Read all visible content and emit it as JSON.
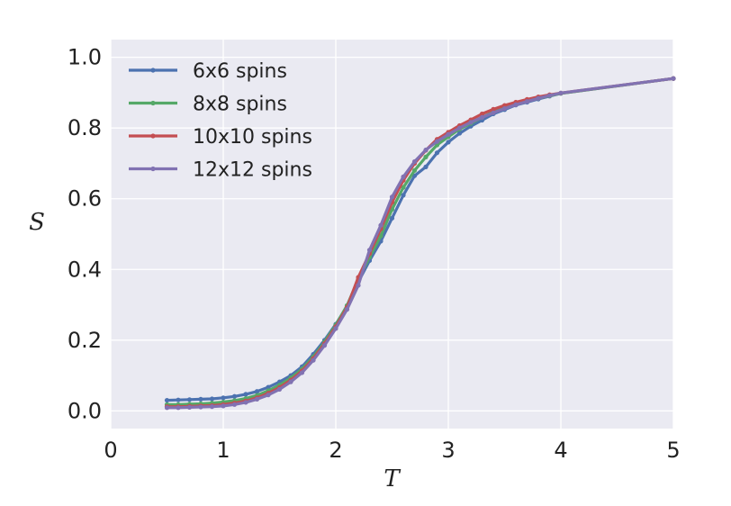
{
  "chart_data": {
    "type": "line",
    "xlabel": "T",
    "ylabel": "S",
    "xlim": [
      0,
      5
    ],
    "ylim": [
      -0.05,
      1.05
    ],
    "xticks": [
      0,
      1,
      2,
      3,
      4,
      5
    ],
    "yticks": [
      0.0,
      0.2,
      0.4,
      0.6,
      0.8,
      1.0
    ],
    "xtick_labels": [
      "0",
      "1",
      "2",
      "3",
      "4",
      "5"
    ],
    "ytick_labels": [
      "0.0",
      "0.2",
      "0.4",
      "0.6",
      "0.8",
      "1.0"
    ],
    "grid": true,
    "legend_position": "top-left",
    "background": "#eaeaf2",
    "x": [
      0.5,
      0.6,
      0.7,
      0.8,
      0.9,
      1.0,
      1.1,
      1.2,
      1.3,
      1.4,
      1.5,
      1.6,
      1.7,
      1.8,
      1.9,
      2.0,
      2.1,
      2.2,
      2.3,
      2.4,
      2.5,
      2.6,
      2.7,
      2.8,
      2.9,
      3.0,
      3.1,
      3.2,
      3.3,
      3.4,
      3.5,
      3.6,
      3.7,
      3.8,
      3.9,
      4.0,
      5.0
    ],
    "series": [
      {
        "name": "6x6 spins",
        "color": "#4c72b0",
        "values": [
          0.03,
          0.031,
          0.032,
          0.033,
          0.034,
          0.037,
          0.041,
          0.047,
          0.055,
          0.067,
          0.082,
          0.1,
          0.125,
          0.16,
          0.2,
          0.245,
          0.295,
          0.365,
          0.425,
          0.48,
          0.545,
          0.61,
          0.665,
          0.69,
          0.73,
          0.76,
          0.785,
          0.805,
          0.822,
          0.84,
          0.852,
          0.865,
          0.873,
          0.882,
          0.89,
          0.898,
          0.94
        ]
      },
      {
        "name": "8x8 spins",
        "color": "#55a868",
        "values": [
          0.018,
          0.018,
          0.019,
          0.02,
          0.022,
          0.025,
          0.029,
          0.035,
          0.044,
          0.057,
          0.073,
          0.093,
          0.118,
          0.153,
          0.195,
          0.243,
          0.298,
          0.372,
          0.435,
          0.495,
          0.57,
          0.632,
          0.68,
          0.718,
          0.752,
          0.775,
          0.797,
          0.813,
          0.83,
          0.845,
          0.858,
          0.869,
          0.876,
          0.884,
          0.891,
          0.898,
          0.94
        ]
      },
      {
        "name": "10x10 spins",
        "color": "#c44e52",
        "values": [
          0.012,
          0.012,
          0.013,
          0.014,
          0.015,
          0.018,
          0.022,
          0.028,
          0.037,
          0.05,
          0.066,
          0.087,
          0.113,
          0.148,
          0.19,
          0.238,
          0.293,
          0.378,
          0.445,
          0.515,
          0.59,
          0.652,
          0.7,
          0.737,
          0.768,
          0.788,
          0.807,
          0.823,
          0.84,
          0.853,
          0.864,
          0.873,
          0.881,
          0.888,
          0.894,
          0.899,
          0.94
        ]
      },
      {
        "name": "12x12 spins",
        "color": "#8172b2",
        "values": [
          0.009,
          0.009,
          0.01,
          0.011,
          0.012,
          0.014,
          0.018,
          0.024,
          0.033,
          0.045,
          0.061,
          0.082,
          0.108,
          0.143,
          0.185,
          0.233,
          0.287,
          0.355,
          0.455,
          0.525,
          0.605,
          0.662,
          0.705,
          0.738,
          0.762,
          0.782,
          0.8,
          0.816,
          0.83,
          0.843,
          0.855,
          0.866,
          0.875,
          0.884,
          0.892,
          0.899,
          0.94
        ]
      }
    ]
  }
}
